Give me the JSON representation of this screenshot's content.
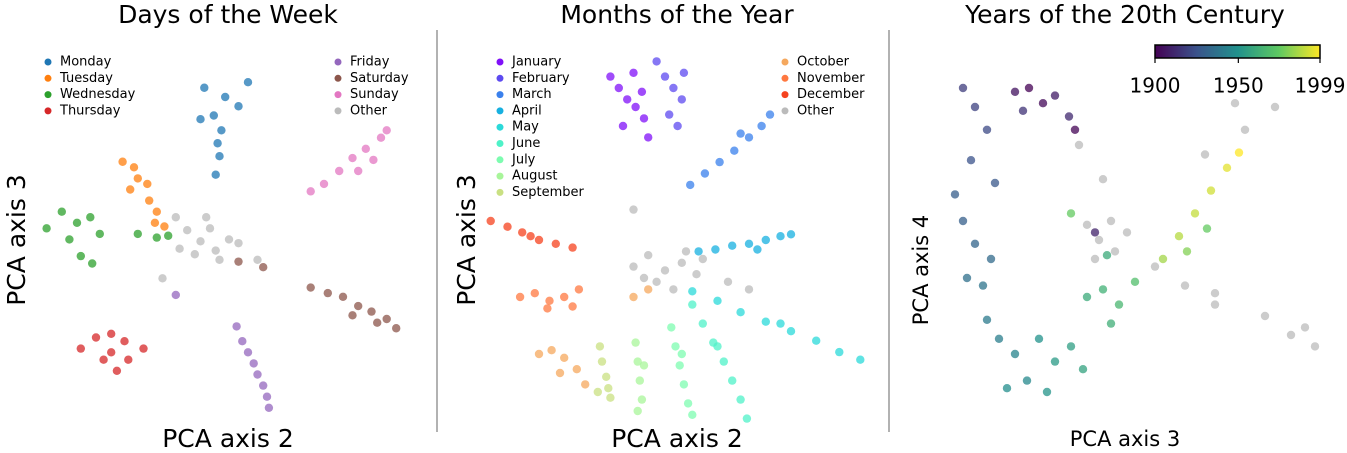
{
  "chart_data": [
    {
      "type": "scatter",
      "title": "Days of the Week",
      "xlabel": "PCA axis 2",
      "ylabel": "PCA axis 3",
      "xlim": [
        -10,
        10
      ],
      "ylim": [
        -10,
        10
      ],
      "series": [
        {
          "name": "Monday",
          "color": "#1f77b4",
          "x": [
            -0.3,
            0.8,
            1.5,
            0.2,
            0.6,
            0.4,
            0.5,
            0.3,
            2.0,
            -0.5
          ],
          "y": [
            8.5,
            8.0,
            7.5,
            7.0,
            6.2,
            5.5,
            4.8,
            3.8,
            8.8,
            6.8
          ]
        },
        {
          "name": "Tuesday",
          "color": "#ff7f0e",
          "x": [
            -4.6,
            -4.0,
            -3.8,
            -3.3,
            -3.2,
            -2.8,
            -2.9,
            -2.4,
            -4.2
          ],
          "y": [
            4.5,
            4.2,
            3.6,
            3.3,
            2.4,
            1.8,
            1.2,
            1.0,
            3.0
          ]
        },
        {
          "name": "Wednesday",
          "color": "#2ca02c",
          "x": [
            -8.6,
            -7.8,
            -7.0,
            -6.3,
            -6.8,
            -5.8,
            -6.2,
            -7.4,
            -3.8,
            -2.8,
            -2.2
          ],
          "y": [
            0.9,
            1.8,
            1.2,
            1.5,
            -0.6,
            0.6,
            -1.0,
            0.3,
            0.6,
            0.4,
            0.5
          ]
        },
        {
          "name": "Thursday",
          "color": "#d62728",
          "x": [
            -6.8,
            -6.0,
            -5.2,
            -4.5,
            -3.5,
            -5.6,
            -4.9,
            -4.3,
            -5.2
          ],
          "y": [
            -5.6,
            -5.0,
            -4.8,
            -5.2,
            -5.6,
            -6.2,
            -6.8,
            -6.2,
            -5.8
          ]
        },
        {
          "name": "Friday",
          "color": "#9467bd",
          "x": [
            1.4,
            1.7,
            2.0,
            2.3,
            2.5,
            2.8,
            3.0,
            3.1,
            -1.8
          ],
          "y": [
            -4.4,
            -5.2,
            -5.8,
            -6.4,
            -7.0,
            -7.6,
            -8.2,
            -8.8,
            -2.7
          ]
        },
        {
          "name": "Saturday",
          "color": "#8c564b",
          "x": [
            5.3,
            6.2,
            7.0,
            7.8,
            8.5,
            9.3,
            9.8,
            7.5,
            8.8,
            1.5,
            2.8
          ],
          "y": [
            -2.3,
            -2.6,
            -2.8,
            -3.3,
            -3.6,
            -4.0,
            -4.5,
            -3.8,
            -4.2,
            -0.9,
            -1.2
          ]
        },
        {
          "name": "Sunday",
          "color": "#e377c2",
          "x": [
            5.3,
            6.0,
            6.8,
            7.5,
            8.2,
            9.0,
            9.3,
            7.8,
            8.6
          ],
          "y": [
            2.9,
            3.3,
            4.0,
            4.7,
            5.2,
            5.8,
            6.2,
            4.0,
            4.6
          ]
        },
        {
          "name": "Other",
          "color": "#bbbbbb",
          "x": [
            -1.2,
            -0.5,
            0.3,
            1.0,
            0.0,
            -0.8,
            1.5,
            -1.6,
            0.5,
            -0.2,
            -1.8,
            -2.5,
            2.5
          ],
          "y": [
            0.8,
            0.2,
            -0.3,
            0.3,
            0.9,
            -0.5,
            0.1,
            -0.2,
            -0.8,
            1.5,
            1.5,
            -1.8,
            -0.8
          ]
        }
      ]
    },
    {
      "type": "scatter",
      "title": "Months of the Year",
      "xlabel": "PCA axis 2",
      "ylabel": "PCA axis 3",
      "xlim": [
        -10,
        10
      ],
      "ylim": [
        -10,
        10
      ],
      "series": [
        {
          "name": "January",
          "color": "#8010f8",
          "x": [
            -2.6,
            -2.2,
            -1.8,
            -1.4,
            -1.0,
            -0.8,
            -2.0,
            -1.5,
            -1.1
          ],
          "y": [
            8.6,
            8.0,
            7.4,
            7.0,
            6.4,
            5.4,
            6.0,
            8.8,
            7.8
          ]
        },
        {
          "name": "February",
          "color": "#5d4af0",
          "x": [
            -0.4,
            0.0,
            0.4,
            0.8,
            0.2,
            0.6,
            0.9
          ],
          "y": [
            9.4,
            8.6,
            8.0,
            7.4,
            6.6,
            6.0,
            8.8
          ]
        },
        {
          "name": "March",
          "color": "#3a80ec",
          "x": [
            1.2,
            1.9,
            2.6,
            3.3,
            4.0,
            4.6,
            5.0,
            3.6
          ],
          "y": [
            2.9,
            3.5,
            4.1,
            4.7,
            5.4,
            6.0,
            6.6,
            5.6
          ]
        },
        {
          "name": "April",
          "color": "#17b0e0",
          "x": [
            1.6,
            2.4,
            3.2,
            4.0,
            4.8,
            5.5,
            6.0,
            4.4
          ],
          "y": [
            -0.6,
            -0.5,
            -0.3,
            -0.2,
            0.0,
            0.2,
            0.3,
            -0.5
          ]
        },
        {
          "name": "May",
          "color": "#2bd9d9",
          "x": [
            1.3,
            2.5,
            3.6,
            4.8,
            6.0,
            7.2,
            8.3,
            9.3,
            5.5
          ],
          "y": [
            -2.7,
            -3.2,
            -3.8,
            -4.3,
            -4.8,
            -5.3,
            -5.9,
            -6.3,
            -4.4
          ]
        },
        {
          "name": "June",
          "color": "#4ff2c8",
          "x": [
            1.3,
            1.8,
            2.3,
            2.8,
            3.2,
            3.6,
            3.9,
            2.5
          ],
          "y": [
            -3.4,
            -4.4,
            -5.4,
            -6.4,
            -7.4,
            -8.4,
            -9.4,
            -5.6
          ]
        },
        {
          "name": "July",
          "color": "#7dfcb0",
          "x": [
            0.3,
            0.5,
            0.7,
            0.9,
            1.1,
            1.3,
            0.8
          ],
          "y": [
            -4.6,
            -5.6,
            -6.6,
            -7.6,
            -8.6,
            -9.2,
            -6.0
          ]
        },
        {
          "name": "August",
          "color": "#a8f59a",
          "x": [
            -1.4,
            -1.3,
            -1.2,
            -1.1,
            -1.3,
            -1.0
          ],
          "y": [
            -5.4,
            -6.4,
            -7.4,
            -8.4,
            -9.0,
            -6.6
          ]
        },
        {
          "name": "September",
          "color": "#c9e082",
          "x": [
            -3.1,
            -3.0,
            -2.8,
            -2.7,
            -2.6,
            -3.2
          ],
          "y": [
            -5.6,
            -6.4,
            -7.2,
            -7.8,
            -8.3,
            -8.0
          ]
        },
        {
          "name": "October",
          "color": "#f5a85e",
          "x": [
            -6.0,
            -5.4,
            -4.8,
            -4.2,
            -3.8,
            -5.0,
            -1.5,
            -0.8
          ],
          "y": [
            -6.0,
            -5.8,
            -6.2,
            -6.8,
            -7.6,
            -7.0,
            -3.0,
            -2.6
          ]
        },
        {
          "name": "November",
          "color": "#ff7840",
          "x": [
            -6.9,
            -6.2,
            -5.5,
            -4.8,
            -4.1,
            -5.6,
            -4.4
          ],
          "y": [
            -3.0,
            -2.8,
            -3.2,
            -3.0,
            -2.6,
            -3.6,
            -3.5
          ]
        },
        {
          "name": "December",
          "color": "#f5421e",
          "x": [
            -8.3,
            -7.5,
            -6.8,
            -6.0,
            -5.2,
            -4.4,
            -6.4
          ],
          "y": [
            1.0,
            0.7,
            0.4,
            0.0,
            -0.2,
            -0.4,
            0.2
          ]
        },
        {
          "name": "Other",
          "color": "#bbbbbb",
          "x": [
            -1.5,
            -0.8,
            0.0,
            0.8,
            1.5,
            -0.4,
            0.4,
            -1.0,
            1.0,
            4.0,
            3.0,
            -1.5,
            1.8
          ],
          "y": [
            -1.4,
            -0.8,
            -1.6,
            -1.2,
            -1.8,
            -2.2,
            -2.6,
            -2.0,
            -0.6,
            -2.6,
            -2.2,
            1.6,
            -1.0
          ]
        }
      ]
    },
    {
      "type": "scatter",
      "title": "Years of the 20th Century",
      "xlabel": "PCA axis 3",
      "ylabel": "PCA axis 4",
      "xlim": [
        -10,
        10
      ],
      "ylim": [
        -10,
        10
      ],
      "colormap": [
        "#440154",
        "#3b528b",
        "#21918c",
        "#5ec962",
        "#fde725"
      ],
      "clim": [
        1900,
        1999
      ],
      "cticks": [
        1900,
        1950,
        1999
      ],
      "series": [
        {
          "color": "#bbbbbb",
          "x": [
            -2.4,
            -1.8,
            -1.0,
            -0.4,
            -2.0,
            -1.2,
            1.0,
            2.5,
            4.0,
            3.5,
            5.5,
            7.0,
            8.5,
            9.0,
            7.8,
            5.0,
            4.0,
            6.5,
            -1.6,
            -2.8
          ],
          "y": [
            0.8,
            0.0,
            -0.6,
            0.4,
            -1.0,
            1.0,
            -1.4,
            -2.4,
            -3.4,
            4.5,
            5.8,
            7.0,
            -4.6,
            -5.6,
            -5.0,
            7.2,
            -2.8,
            -4.0,
            3.2,
            5.0
          ]
        },
        {
          "x": [
            -6.0,
            -5.3,
            -4.6,
            -4.0,
            -3.3,
            -3.0,
            -5.6,
            -8.6,
            -8.0,
            -7.4,
            -8.2,
            -7.0,
            -9.0,
            -8.6,
            -8.0,
            -7.2,
            -8.4,
            -7.6,
            -7.4,
            -6.8,
            -6.0,
            -5.4,
            -6.4,
            -4.8,
            -4.0,
            -3.2,
            -2.6,
            -4.4,
            -2.4,
            -1.6,
            -0.8,
            0.0,
            -1.2,
            1.4,
            2.2,
            3.0,
            3.8,
            4.6,
            5.2,
            2.6,
            3.6,
            -3.2,
            -2.0,
            -1.4
          ],
          "y": [
            7.8,
            8.0,
            7.2,
            7.6,
            6.5,
            5.8,
            6.8,
            8.0,
            7.0,
            5.8,
            4.2,
            3.0,
            2.4,
            1.0,
            -0.2,
            -1.0,
            -2.0,
            -2.4,
            -4.2,
            -5.2,
            -6.0,
            -7.4,
            -7.8,
            -5.2,
            -6.4,
            -5.6,
            -6.8,
            -8.0,
            -3.0,
            -2.6,
            -3.4,
            -2.2,
            -4.4,
            -1.0,
            0.2,
            1.4,
            2.6,
            3.8,
            4.6,
            -0.6,
            0.6,
            1.4,
            0.4,
            -0.8
          ],
          "c": [
            1905,
            1900,
            1902,
            1908,
            1912,
            1901,
            1915,
            1918,
            1920,
            1922,
            1925,
            1927,
            1929,
            1930,
            1932,
            1934,
            1936,
            1938,
            1940,
            1942,
            1944,
            1946,
            1948,
            1950,
            1953,
            1955,
            1957,
            1951,
            1960,
            1963,
            1966,
            1969,
            1962,
            1985,
            1988,
            1990,
            1992,
            1995,
            1999,
            1980,
            1975,
            1975,
            1910,
            1960
          ]
        }
      ]
    }
  ]
}
